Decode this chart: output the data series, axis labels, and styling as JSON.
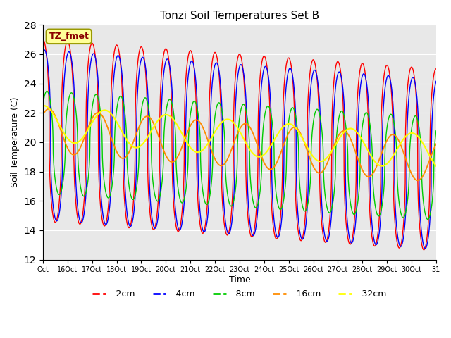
{
  "title": "Tonzi Soil Temperatures Set B",
  "xlabel": "Time",
  "ylabel": "Soil Temperature (C)",
  "ylim": [
    12,
    28
  ],
  "yticks": [
    12,
    14,
    16,
    18,
    20,
    22,
    24,
    26,
    28
  ],
  "colors": {
    "-2cm": "#FF0000",
    "-4cm": "#0000FF",
    "-8cm": "#00CC00",
    "-16cm": "#FF8C00",
    "-32cm": "#FFFF00"
  },
  "legend_label": "TZ_fmet",
  "legend_box_color": "#FFFF99",
  "legend_box_edge": "#999900",
  "background_color": "#E8E8E8",
  "x_tick_labels": [
    "Oct",
    "16Oct",
    "17Oct",
    "18Oct",
    "19Oct",
    "20Oct",
    "21Oct",
    "22Oct",
    "23Oct",
    "24Oct",
    "25Oct",
    "26Oct",
    "27Oct",
    "28Oct",
    "29Oct",
    "30Oct",
    "31"
  ],
  "num_points": 2000
}
